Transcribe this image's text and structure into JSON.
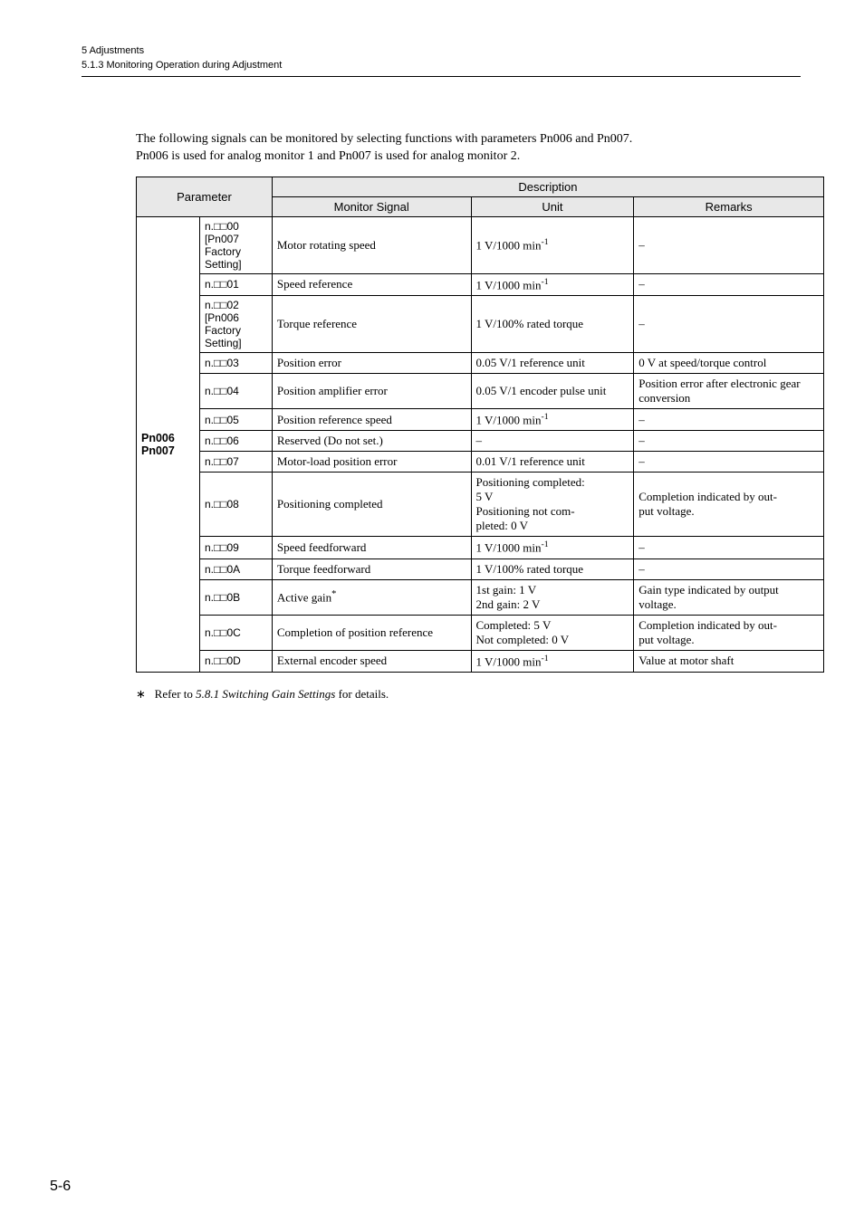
{
  "header": {
    "chapter": "5  Adjustments",
    "section": "5.1.3  Monitoring Operation during Adjustment"
  },
  "intro": {
    "line1": "The following signals can be monitored by selecting functions with parameters Pn006 and Pn007.",
    "line2": "Pn006 is used for analog monitor 1 and Pn007 is used for analog monitor 2."
  },
  "table": {
    "head": {
      "parameter": "Parameter",
      "description": "Description",
      "monitor_signal": "Monitor Signal",
      "unit": "Unit",
      "remarks": "Remarks"
    },
    "param_label_1": "Pn006",
    "param_label_2": "Pn007",
    "rows": [
      {
        "sub": "n.□□00\n[Pn007 Factory Setting]",
        "signal": "Motor rotating speed",
        "unit": "1 V/1000 min⁻¹",
        "remarks": "–",
        "remarks_center": true
      },
      {
        "sub": "n.□□01",
        "signal": "Speed reference",
        "unit": "1 V/1000 min⁻¹",
        "remarks": "–",
        "remarks_center": true
      },
      {
        "sub": "n.□□02\n[Pn006 Factory Setting]",
        "signal": "Torque reference",
        "unit": "1 V/100% rated torque",
        "remarks": "–",
        "remarks_center": true
      },
      {
        "sub": "n.□□03",
        "signal": "Position error",
        "unit": "0.05 V/1 reference unit",
        "remarks": "0 V at speed/torque control"
      },
      {
        "sub": "n.□□04",
        "signal": "Position amplifier error",
        "unit": "0.05 V/1 encoder pulse unit",
        "remarks": "Position error after electronic gear conversion"
      },
      {
        "sub": "n.□□05",
        "signal": "Position reference speed",
        "unit": "1 V/1000 min⁻¹",
        "remarks": "–"
      },
      {
        "sub": "n.□□06",
        "signal": "Reserved (Do not set.)",
        "unit": "–",
        "unit_center": true,
        "remarks": "–",
        "remarks_center": true
      },
      {
        "sub": "n.□□07",
        "signal": "Motor-load position error",
        "unit": "0.01 V/1 reference unit",
        "remarks": "–",
        "remarks_center": true
      },
      {
        "sub": "n.□□08",
        "signal": "Positioning completed",
        "unit": "Positioning completed: 5 V\nPositioning not completed: 0 V",
        "remarks": "Completion indicated by output voltage."
      },
      {
        "sub": "n.□□09",
        "signal": "Speed feedforward",
        "unit": "1 V/1000 min⁻¹",
        "remarks": "–",
        "remarks_center": true
      },
      {
        "sub": "n.□□0A",
        "signal": "Torque feedforward",
        "unit": "1 V/100% rated torque",
        "remarks": "–",
        "remarks_center": true
      },
      {
        "sub": "n.□□0B",
        "signal": "Active gain *",
        "unit": "1st gain: 1 V\n2nd gain: 2 V",
        "remarks": "Gain type indicated by output voltage."
      },
      {
        "sub": "n.□□0C",
        "signal": "Completion of position reference",
        "unit": "Completed: 5 V\nNot completed: 0 V",
        "remarks": "Completion indicated by output voltage."
      },
      {
        "sub": "n.□□0D",
        "signal": "External encoder speed",
        "unit": "1 V/1000 min⁻¹",
        "remarks": "Value at motor shaft"
      }
    ]
  },
  "footnote": {
    "marker": "∗",
    "text_prefix": "Refer to ",
    "text_italic": "5.8.1  Switching Gain Settings",
    "text_suffix": " for details."
  },
  "pagenum": "5-6"
}
